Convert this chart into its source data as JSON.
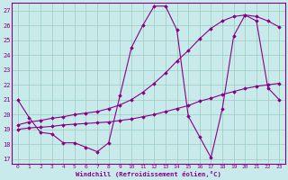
{
  "xlabel": "Windchill (Refroidissement éolien,°C)",
  "xlim": [
    -0.5,
    23.5
  ],
  "ylim": [
    16.7,
    27.5
  ],
  "xticks": [
    0,
    1,
    2,
    3,
    4,
    5,
    6,
    7,
    8,
    9,
    10,
    11,
    12,
    13,
    14,
    15,
    16,
    17,
    18,
    19,
    20,
    21,
    22,
    23
  ],
  "yticks": [
    17,
    18,
    19,
    20,
    21,
    22,
    23,
    24,
    25,
    26,
    27
  ],
  "bg_color": "#c8eaea",
  "line_color": "#880088",
  "grid_color": "#99ccbb",
  "line1_x": [
    0,
    1,
    2,
    3,
    4,
    5,
    6,
    7,
    8,
    9,
    10,
    11,
    12,
    13,
    14,
    15,
    16,
    17,
    18,
    19,
    20,
    21,
    22,
    23
  ],
  "line1_y": [
    21.0,
    19.8,
    18.8,
    18.7,
    18.1,
    18.1,
    17.8,
    17.5,
    18.1,
    21.3,
    24.5,
    26.0,
    27.3,
    27.3,
    25.7,
    19.9,
    18.5,
    17.1,
    20.4,
    25.3,
    26.7,
    26.3,
    21.8,
    21.0
  ],
  "line2_x": [
    0,
    1,
    2,
    3,
    4,
    5,
    6,
    7,
    8,
    9,
    10,
    11,
    12,
    13,
    14,
    15,
    16,
    17,
    18,
    19,
    20,
    21,
    22,
    23
  ],
  "line2_y": [
    19.0,
    19.1,
    19.15,
    19.2,
    19.3,
    19.35,
    19.4,
    19.45,
    19.5,
    19.6,
    19.7,
    19.85,
    20.0,
    20.2,
    20.4,
    20.6,
    20.9,
    21.1,
    21.35,
    21.55,
    21.75,
    21.9,
    22.0,
    22.1
  ],
  "line3_x": [
    0,
    1,
    2,
    3,
    4,
    5,
    6,
    7,
    8,
    9,
    10,
    11,
    12,
    13,
    14,
    15,
    16,
    17,
    18,
    19,
    20,
    21,
    22,
    23
  ],
  "line3_y": [
    19.3,
    19.5,
    19.6,
    19.75,
    19.85,
    20.0,
    20.1,
    20.2,
    20.4,
    20.65,
    21.0,
    21.5,
    22.1,
    22.8,
    23.6,
    24.3,
    25.1,
    25.8,
    26.3,
    26.6,
    26.7,
    26.6,
    26.3,
    25.9
  ]
}
